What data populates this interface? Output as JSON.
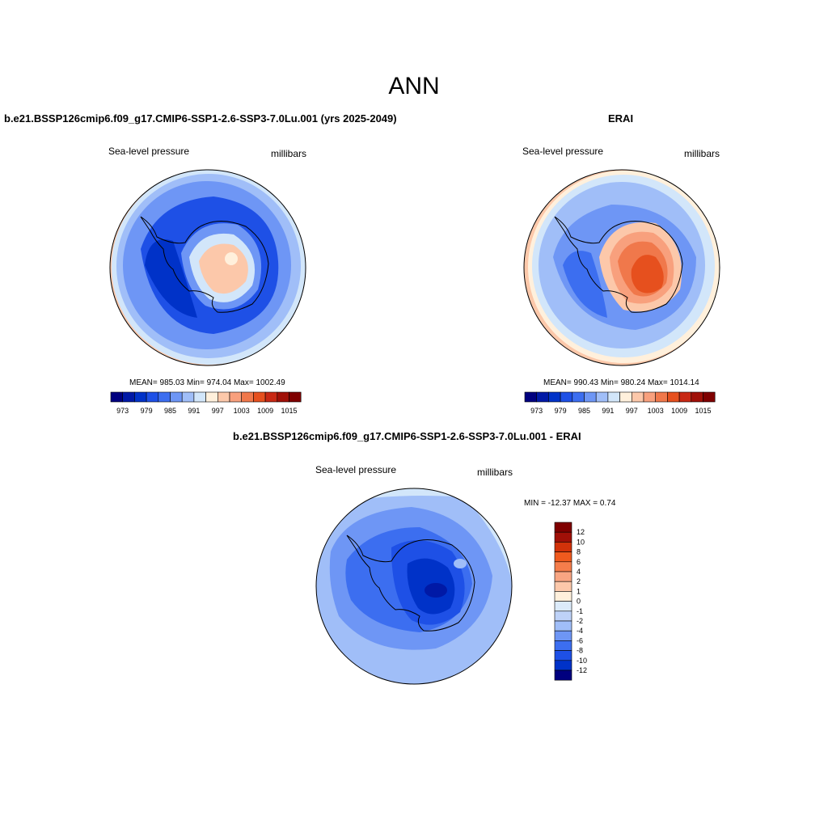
{
  "main_title": "ANN",
  "panels": [
    {
      "title": "b.e21.BSSP126cmip6.f09_g17.CMIP6-SSP1-2.6-SSP3-7.0Lu.001 (yrs 2025-2049)",
      "left_label": "Sea-level pressure",
      "right_label": "millibars",
      "stats": "MEAN= 985.03   Min= 974.04   Max= 1002.49",
      "map_kind": "model"
    },
    {
      "title": "ERAI",
      "left_label": "Sea-level pressure",
      "right_label": "millibars",
      "stats": "MEAN= 990.43   Min= 980.24   Max= 1014.14",
      "map_kind": "obs"
    },
    {
      "title": "b.e21.BSSP126cmip6.f09_g17.CMIP6-SSP1-2.6-SSP3-7.0Lu.001 - ERAI",
      "left_label": "Sea-level pressure",
      "right_label": "millibars",
      "stats": "MIN = -12.37 MAX =   0.74",
      "map_kind": "diff"
    }
  ],
  "horizontal_colorbar": {
    "colors": [
      "#00007f",
      "#0019a6",
      "#0032c8",
      "#1e50e6",
      "#3c6ef0",
      "#6e96f5",
      "#a0bef8",
      "#d2e6fa",
      "#fff0dc",
      "#fcc8aa",
      "#f8a07d",
      "#f0784b",
      "#e6501e",
      "#c82814",
      "#a01008",
      "#7f0000"
    ],
    "tick_labels": [
      "973",
      "979",
      "985",
      "991",
      "997",
      "1003",
      "1009",
      "1015"
    ]
  },
  "vertical_colorbar": {
    "colors_top_to_bottom": [
      "#7f0000",
      "#a01008",
      "#d2320a",
      "#f05a1e",
      "#f57d4b",
      "#f8a582",
      "#fcc8aa",
      "#fff0dc",
      "#dcebfa",
      "#bed2f8",
      "#a0bef8",
      "#6e96f5",
      "#3c6ef0",
      "#1e50e6",
      "#0032c8",
      "#00007f"
    ],
    "tick_labels": [
      "12",
      "10",
      "8",
      "6",
      "4",
      "2",
      "1",
      "0",
      "-1",
      "-2",
      "-4",
      "-6",
      "-8",
      "-10",
      "-12"
    ]
  }
}
